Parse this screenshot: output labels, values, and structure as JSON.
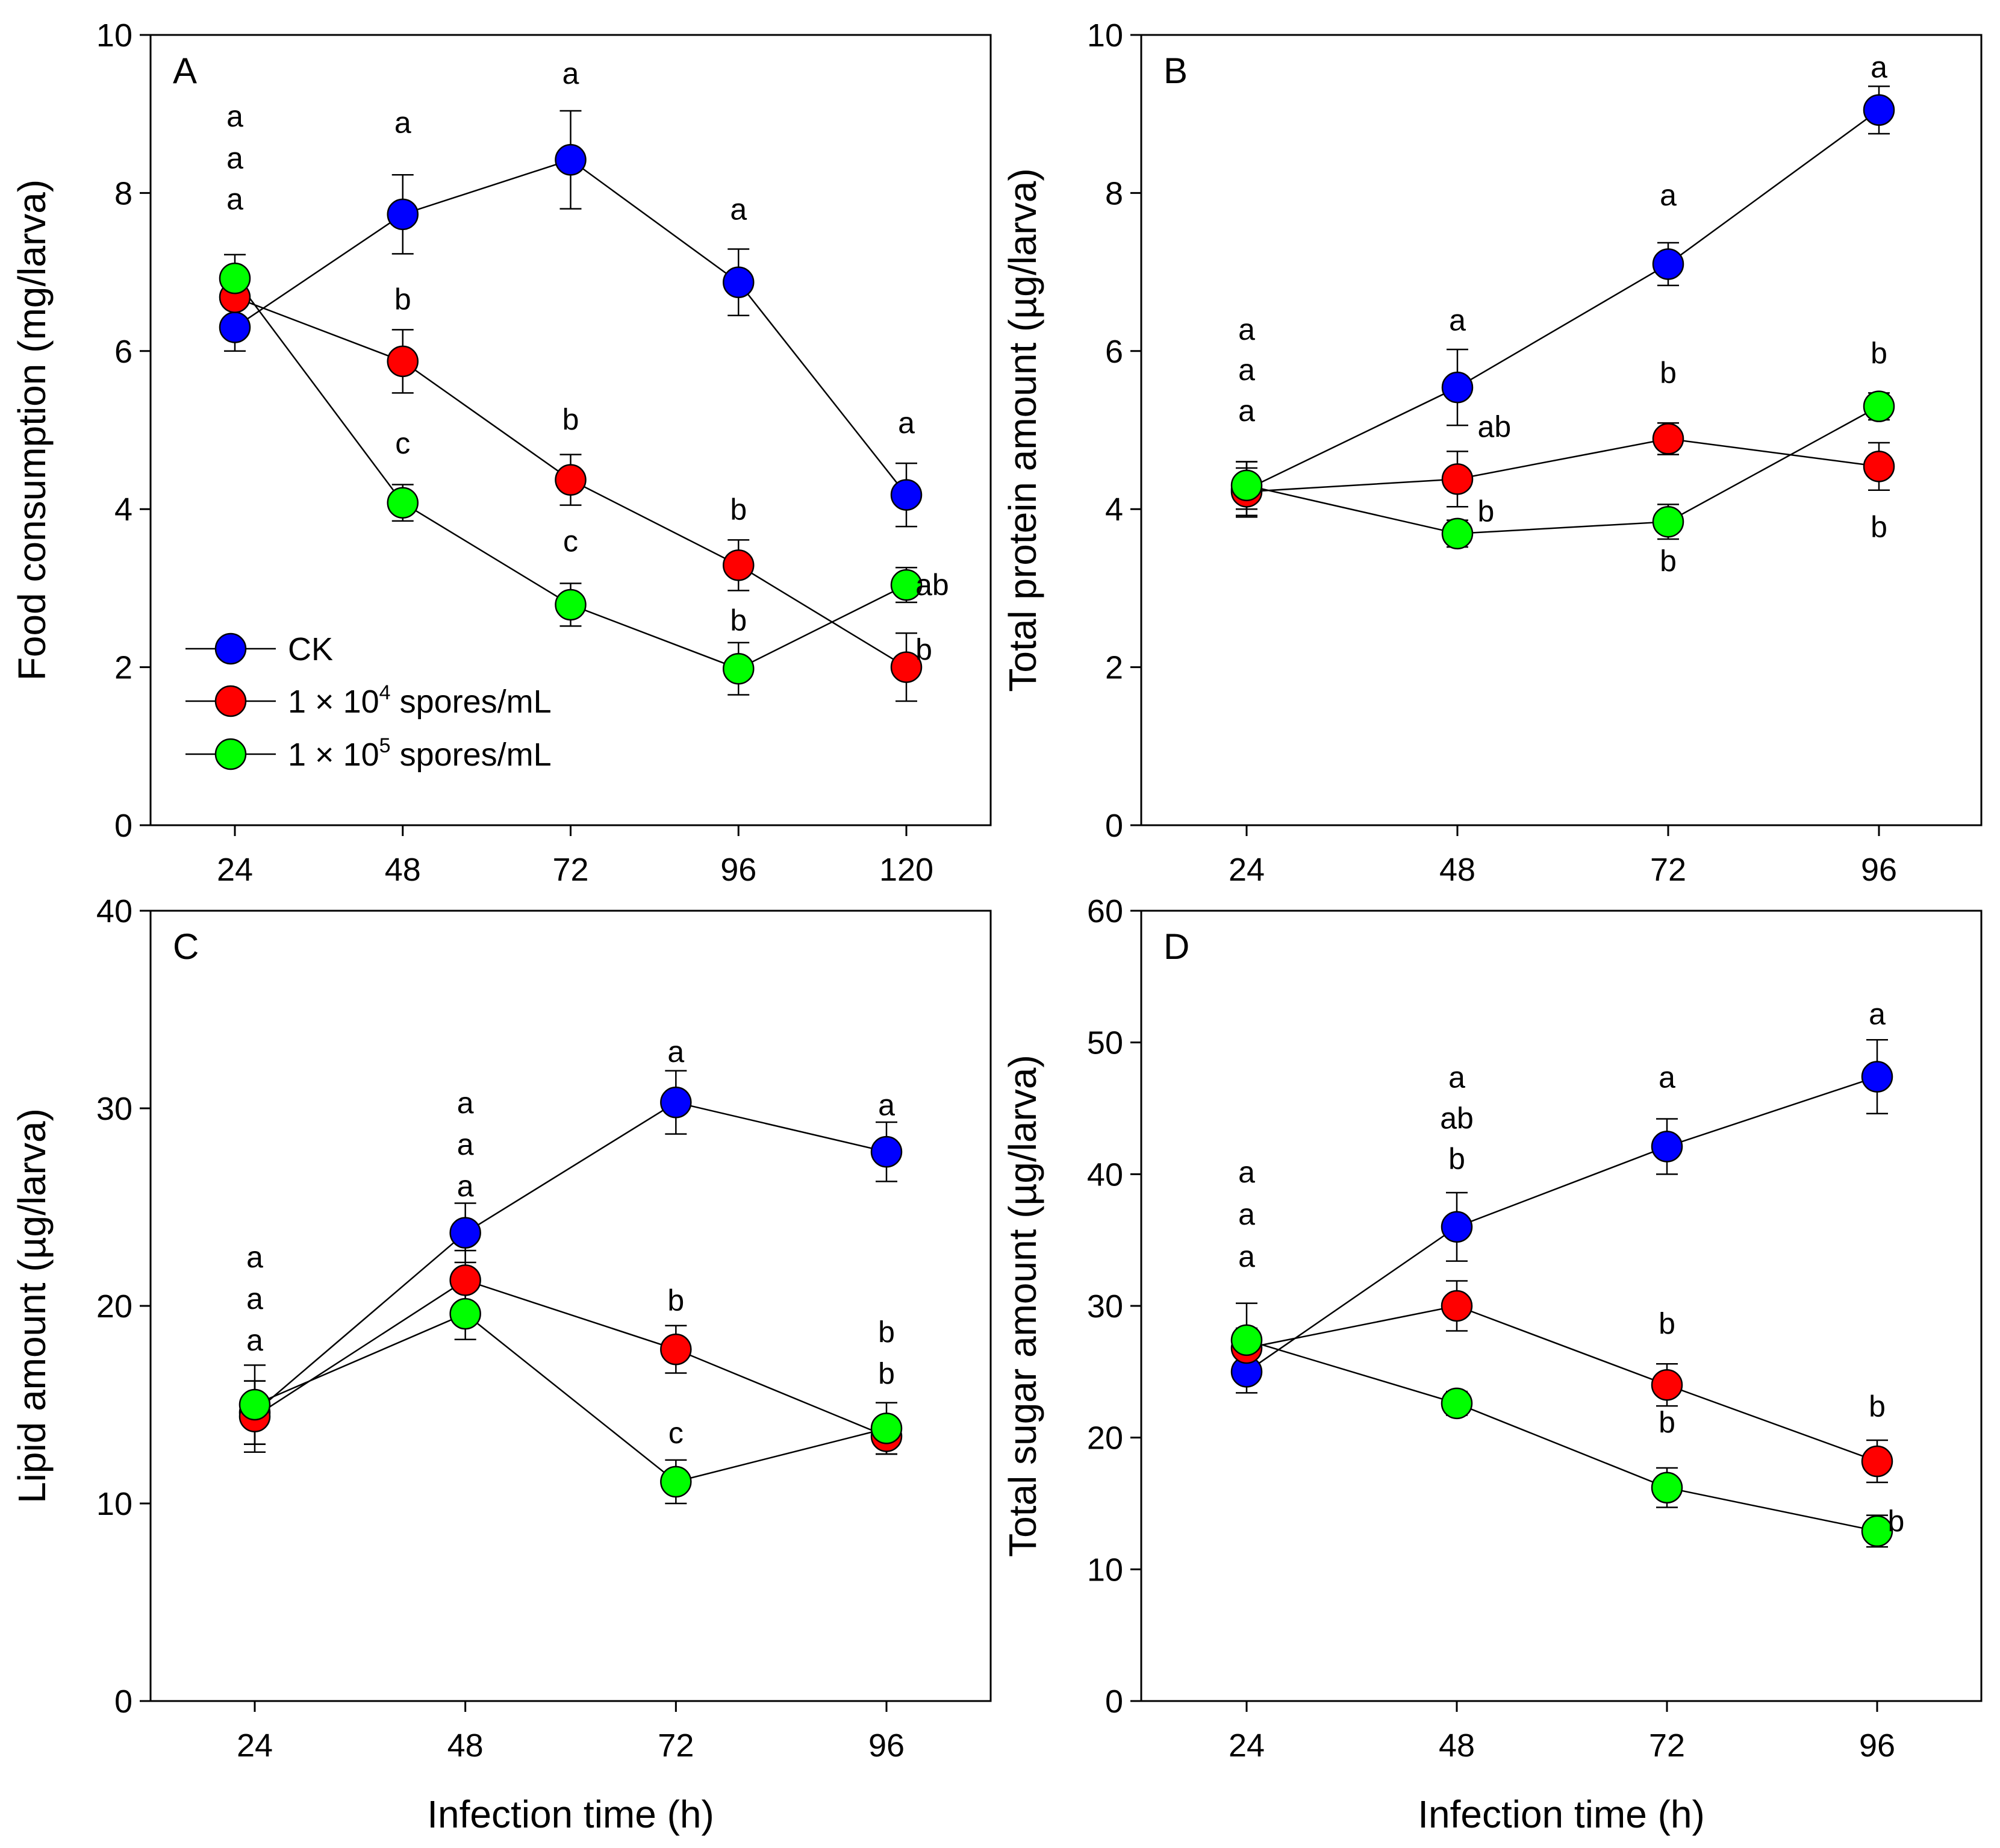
{
  "legend": {
    "items": [
      {
        "key": "ck",
        "label": "CK",
        "sup": "",
        "suffix": ""
      },
      {
        "key": "low",
        "label": "1 × 10",
        "sup": "4",
        "suffix": " spores/mL"
      },
      {
        "key": "high",
        "label": "1 × 10",
        "sup": "5",
        "suffix": " spores/mL"
      }
    ]
  },
  "colors": {
    "ck": "#0000ff",
    "low": "#ff0000",
    "high": "#00ff00",
    "axis": "#000000",
    "line": "#000000"
  },
  "chart_data": [
    {
      "id": "A",
      "panel_label": "A",
      "type": "line",
      "x": [
        24,
        48,
        72,
        96,
        120
      ],
      "xticks": [
        "24",
        "48",
        "72",
        "96",
        "120"
      ],
      "xlabel": "",
      "ylabel": "Food consumption (mg/larva)",
      "ylim": [
        0,
        10
      ],
      "yticks": [
        "0",
        "2",
        "4",
        "6",
        "8",
        "10"
      ],
      "ytick_values": [
        0,
        2,
        4,
        6,
        8,
        10
      ],
      "series": [
        {
          "key": "ck",
          "name": "CK",
          "values": [
            6.3,
            7.73,
            8.42,
            6.87,
            4.18
          ],
          "errors": [
            0.3,
            0.5,
            0.62,
            0.42,
            0.4
          ]
        },
        {
          "key": "low",
          "name": "1 × 10^4 spores/mL",
          "values": [
            6.68,
            5.87,
            4.37,
            3.29,
            2.0
          ],
          "errors": [
            0.0,
            0.4,
            0.32,
            0.32,
            0.43
          ]
        },
        {
          "key": "high",
          "name": "1 × 10^5 spores/mL",
          "values": [
            6.92,
            4.08,
            2.79,
            1.98,
            3.04
          ],
          "errors": [
            0.3,
            0.23,
            0.27,
            0.33,
            0.22
          ]
        }
      ],
      "annotations": [
        {
          "x": 24,
          "y": 8.98,
          "text": "a"
        },
        {
          "x": 24,
          "y": 8.45,
          "text": "a"
        },
        {
          "x": 24,
          "y": 7.93,
          "text": "a"
        },
        {
          "x": 48,
          "y": 8.9,
          "text": "a"
        },
        {
          "x": 48,
          "y": 6.66,
          "text": "b"
        },
        {
          "x": 48,
          "y": 4.84,
          "text": "c"
        },
        {
          "x": 72,
          "y": 9.52,
          "text": "a"
        },
        {
          "x": 72,
          "y": 5.14,
          "text": "b"
        },
        {
          "x": 72,
          "y": 3.6,
          "text": "c"
        },
        {
          "x": 96,
          "y": 7.8,
          "text": "a"
        },
        {
          "x": 96,
          "y": 4.0,
          "text": "b"
        },
        {
          "x": 96,
          "y": 2.6,
          "text": "b"
        },
        {
          "x": 120,
          "y": 5.1,
          "text": "a"
        },
        {
          "x": 121.3,
          "y": 3.05,
          "text": "ab",
          "anchor": "start"
        },
        {
          "x": 121.3,
          "y": 2.23,
          "text": "b",
          "anchor": "start"
        }
      ]
    },
    {
      "id": "B",
      "panel_label": "B",
      "type": "line",
      "x": [
        24,
        48,
        72,
        96
      ],
      "xticks": [
        "24",
        "48",
        "72",
        "96"
      ],
      "xlabel": "",
      "ylabel": "Total protein amount (µg/larva)",
      "ylim": [
        0,
        10
      ],
      "yticks": [
        "0",
        "2",
        "4",
        "6",
        "8",
        "10"
      ],
      "ytick_values": [
        0,
        2,
        4,
        6,
        8,
        10
      ],
      "series": [
        {
          "key": "ck",
          "name": "CK",
          "values": [
            4.25,
            5.54,
            7.1,
            9.05
          ],
          "errors": [
            0.35,
            0.48,
            0.27,
            0.3
          ]
        },
        {
          "key": "low",
          "name": "1 × 10^4 spores/mL",
          "values": [
            4.22,
            4.38,
            4.89,
            4.54
          ],
          "errors": [
            0.3,
            0.35,
            0.2,
            0.3
          ]
        },
        {
          "key": "high",
          "name": "1 × 10^5 spores/mL",
          "values": [
            4.3,
            3.69,
            3.84,
            5.3
          ],
          "errors": [
            0.3,
            0.17,
            0.22,
            0.17
          ]
        }
      ],
      "annotations": [
        {
          "x": 24,
          "y": 6.28,
          "text": "a"
        },
        {
          "x": 24,
          "y": 5.77,
          "text": "a"
        },
        {
          "x": 24,
          "y": 5.25,
          "text": "a"
        },
        {
          "x": 48,
          "y": 6.4,
          "text": "a"
        },
        {
          "x": 50.3,
          "y": 5.05,
          "text": "ab",
          "anchor": "start"
        },
        {
          "x": 50.3,
          "y": 3.98,
          "text": "b",
          "anchor": "start"
        },
        {
          "x": 72,
          "y": 7.98,
          "text": "a"
        },
        {
          "x": 72,
          "y": 5.73,
          "text": "b"
        },
        {
          "x": 72,
          "y": 3.35,
          "text": "b"
        },
        {
          "x": 96,
          "y": 9.6,
          "text": "a"
        },
        {
          "x": 96,
          "y": 5.98,
          "text": "b"
        },
        {
          "x": 96,
          "y": 3.78,
          "text": "b"
        }
      ]
    },
    {
      "id": "C",
      "panel_label": "C",
      "type": "line",
      "x": [
        24,
        48,
        72,
        96
      ],
      "xticks": [
        "24",
        "48",
        "72",
        "96"
      ],
      "xlabel": "Infection time (h)",
      "ylabel": "Lipid amount (µg/larva)",
      "ylim": [
        0,
        40
      ],
      "yticks": [
        "0",
        "10",
        "20",
        "30",
        "40"
      ],
      "ytick_values": [
        0,
        10,
        20,
        30,
        40
      ],
      "series": [
        {
          "key": "ck",
          "name": "CK",
          "values": [
            14.6,
            23.7,
            30.3,
            27.8
          ],
          "errors": [
            1.6,
            1.5,
            1.6,
            1.5
          ]
        },
        {
          "key": "low",
          "name": "1 × 10^4 spores/mL",
          "values": [
            14.4,
            21.3,
            17.8,
            13.4
          ],
          "errors": [
            1.8,
            1.5,
            1.2,
            0.9
          ]
        },
        {
          "key": "high",
          "name": "1 × 10^5 spores/mL",
          "values": [
            15.0,
            19.6,
            11.1,
            13.8
          ],
          "errors": [
            2.0,
            1.3,
            1.1,
            1.3
          ]
        }
      ],
      "annotations": [
        {
          "x": 24,
          "y": 22.5,
          "text": "a"
        },
        {
          "x": 24,
          "y": 20.4,
          "text": "a"
        },
        {
          "x": 24,
          "y": 18.3,
          "text": "a"
        },
        {
          "x": 48,
          "y": 30.3,
          "text": "a"
        },
        {
          "x": 48,
          "y": 28.2,
          "text": "a"
        },
        {
          "x": 48,
          "y": 26.1,
          "text": "a"
        },
        {
          "x": 72,
          "y": 32.9,
          "text": "a"
        },
        {
          "x": 72,
          "y": 20.3,
          "text": "b"
        },
        {
          "x": 72,
          "y": 13.6,
          "text": "c"
        },
        {
          "x": 96,
          "y": 30.2,
          "text": "a"
        },
        {
          "x": 96,
          "y": 18.7,
          "text": "b"
        },
        {
          "x": 96,
          "y": 16.6,
          "text": "b"
        }
      ]
    },
    {
      "id": "D",
      "panel_label": "D",
      "type": "line",
      "x": [
        24,
        48,
        72,
        96
      ],
      "xticks": [
        "24",
        "48",
        "72",
        "96"
      ],
      "xlabel": "Infection time (h)",
      "ylabel": "Total sugar amount (µg/larva)",
      "ylim": [
        0,
        60
      ],
      "yticks": [
        "0",
        "10",
        "20",
        "30",
        "40",
        "50",
        "60"
      ],
      "ytick_values": [
        0,
        10,
        20,
        30,
        40,
        50,
        60
      ],
      "series": [
        {
          "key": "ck",
          "name": "CK",
          "values": [
            25.0,
            36.0,
            42.1,
            47.4
          ],
          "errors": [
            1.6,
            2.6,
            2.1,
            2.8
          ]
        },
        {
          "key": "low",
          "name": "1 × 10^4 spores/mL",
          "values": [
            26.8,
            30.0,
            24.0,
            18.2
          ],
          "errors": [
            1.5,
            1.9,
            1.6,
            1.6
          ]
        },
        {
          "key": "high",
          "name": "1 × 10^5 spores/mL",
          "values": [
            27.4,
            22.6,
            16.2,
            12.9
          ],
          "errors": [
            2.8,
            0.9,
            1.5,
            1.2
          ]
        }
      ],
      "annotations": [
        {
          "x": 24,
          "y": 40.2,
          "text": "a"
        },
        {
          "x": 24,
          "y": 37.0,
          "text": "a"
        },
        {
          "x": 24,
          "y": 33.8,
          "text": "a"
        },
        {
          "x": 48,
          "y": 47.4,
          "text": "a"
        },
        {
          "x": 48,
          "y": 44.3,
          "text": "ab"
        },
        {
          "x": 48,
          "y": 41.2,
          "text": "b"
        },
        {
          "x": 72,
          "y": 47.4,
          "text": "a"
        },
        {
          "x": 72,
          "y": 28.7,
          "text": "b"
        },
        {
          "x": 72,
          "y": 21.2,
          "text": "b"
        },
        {
          "x": 96,
          "y": 52.2,
          "text": "a"
        },
        {
          "x": 96,
          "y": 22.4,
          "text": "b"
        },
        {
          "x": 97.2,
          "y": 13.7,
          "text": "b",
          "anchor": "start"
        }
      ]
    }
  ]
}
